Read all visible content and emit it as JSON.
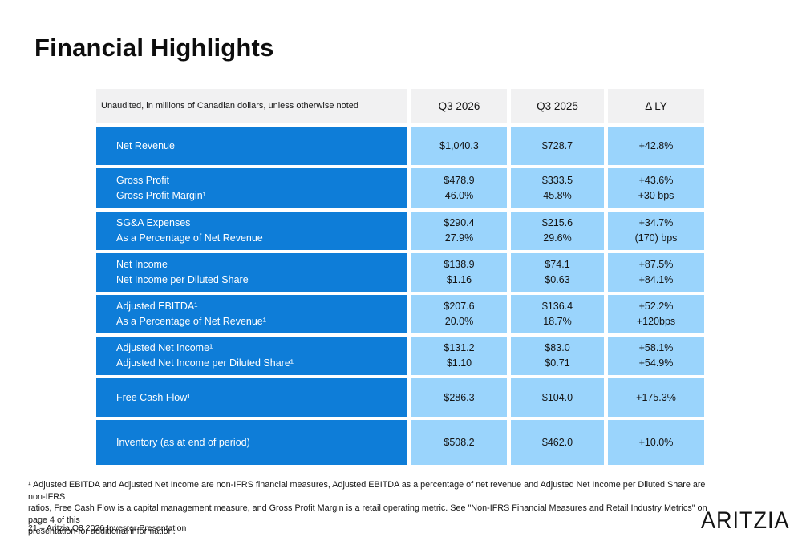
{
  "slide": {
    "title": "Financial Highlights",
    "footnote_lines": [
      "¹ Adjusted EBITDA and Adjusted Net Income are non-IFRS financial measures, Adjusted EBITDA as a percentage of net revenue and Adjusted Net Income per Diluted Share are non-IFRS",
      "ratios, Free Cash Flow is a capital management measure, and Gross Profit Margin is a retail operating metric. See \"Non-IFRS Financial Measures and Retail Industry Metrics\" on page 4 of this",
      "presentation for additional information."
    ],
    "footer": {
      "page_label": "21 – Aritzia Q3 2026 Investor Presentation",
      "logo": "ARITZIA"
    }
  },
  "table": {
    "header": {
      "note": "Unaudited, in millions of Canadian dollars, unless otherwise noted",
      "columns": [
        "Q3 2026",
        "Q3 2025",
        "Δ LY"
      ]
    },
    "rows": [
      {
        "label": [
          "Net Revenue"
        ],
        "q3_2026": [
          "$1,040.3"
        ],
        "q3_2025": [
          "$728.7"
        ],
        "delta_ly": [
          "+42.8%"
        ]
      },
      {
        "label": [
          "Gross Profit",
          "Gross Profit Margin¹"
        ],
        "q3_2026": [
          "$478.9",
          "46.0%"
        ],
        "q3_2025": [
          "$333.5",
          "45.8%"
        ],
        "delta_ly": [
          "+43.6%",
          "+30 bps"
        ]
      },
      {
        "label": [
          "SG&A Expenses",
          "As a Percentage of Net Revenue"
        ],
        "q3_2026": [
          "$290.4",
          "27.9%"
        ],
        "q3_2025": [
          "$215.6",
          "29.6%"
        ],
        "delta_ly": [
          "+34.7%",
          "(170) bps"
        ]
      },
      {
        "label": [
          "Net Income",
          "Net Income per Diluted Share"
        ],
        "q3_2026": [
          "$138.9",
          "$1.16"
        ],
        "q3_2025": [
          "$74.1",
          "$0.63"
        ],
        "delta_ly": [
          "+87.5%",
          "+84.1%"
        ]
      },
      {
        "label": [
          "Adjusted EBITDA¹",
          "As a Percentage of Net Revenue¹"
        ],
        "q3_2026": [
          "$207.6",
          "20.0%"
        ],
        "q3_2025": [
          "$136.4",
          "18.7%"
        ],
        "delta_ly": [
          "+52.2%",
          "+120bps"
        ]
      },
      {
        "label": [
          "Adjusted Net Income¹",
          "Adjusted Net Income per Diluted Share¹"
        ],
        "q3_2026": [
          "$131.2",
          "$1.10"
        ],
        "q3_2025": [
          "$83.0",
          "$0.71"
        ],
        "delta_ly": [
          "+58.1%",
          "+54.9%"
        ]
      },
      {
        "label": [
          "Free Cash Flow¹"
        ],
        "q3_2026": [
          "$286.3"
        ],
        "q3_2025": [
          "$104.0"
        ],
        "delta_ly": [
          "+175.3%"
        ]
      },
      {
        "label": [
          "Inventory (as at end of period)"
        ],
        "q3_2026": [
          "$508.2"
        ],
        "q3_2025": [
          "$462.0"
        ],
        "delta_ly": [
          "+10.0%"
        ]
      }
    ]
  },
  "colors": {
    "row_label_bg": "#0e7dd8",
    "value_cell_bg": "#9ad4fc",
    "header_bg": "#f1f1f2"
  }
}
